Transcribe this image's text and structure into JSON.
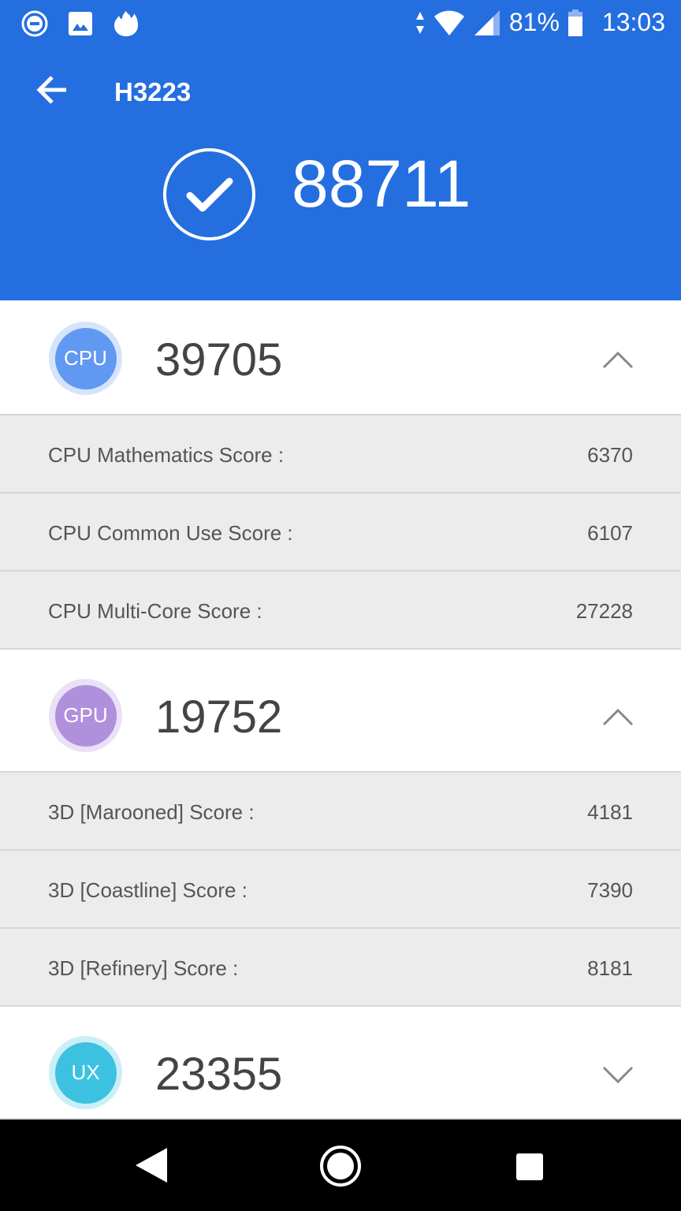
{
  "status_bar": {
    "battery": "81%",
    "time": "13:03",
    "icons": [
      "do-not-disturb-icon",
      "gallery-icon",
      "flame-icon",
      "data-arrows-icon",
      "wifi-icon",
      "signal-icon",
      "battery-icon"
    ]
  },
  "header": {
    "title": "H3223",
    "total_score": "88711",
    "color": "#256ee0"
  },
  "sections": [
    {
      "badge": "CPU",
      "score": "39705",
      "expanded": true,
      "color": "#6199f2",
      "rows": [
        {
          "label": "CPU Mathematics Score :",
          "value": "6370"
        },
        {
          "label": "CPU Common Use Score :",
          "value": "6107"
        },
        {
          "label": "CPU Multi-Core Score :",
          "value": "27228"
        }
      ]
    },
    {
      "badge": "GPU",
      "score": "19752",
      "expanded": true,
      "color": "#b08fdc",
      "rows": [
        {
          "label": "3D [Marooned] Score :",
          "value": "4181"
        },
        {
          "label": "3D [Coastline] Score :",
          "value": "7390"
        },
        {
          "label": "3D [Refinery] Score :",
          "value": "8181"
        }
      ]
    },
    {
      "badge": "UX",
      "score": "23355",
      "expanded": false,
      "color": "#3cc2e0",
      "rows": []
    }
  ]
}
